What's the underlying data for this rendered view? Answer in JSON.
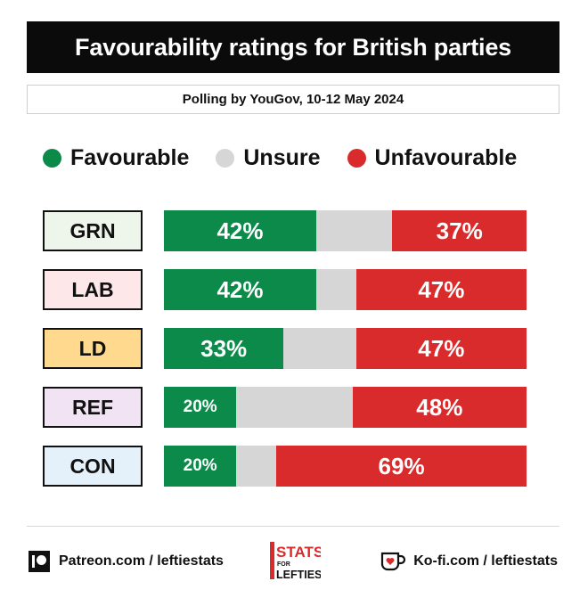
{
  "header": {
    "title": "Favourability ratings for British parties",
    "subtitle": "Polling by YouGov, 10-12 May 2024"
  },
  "legend": [
    {
      "label": "Favourable",
      "color": "#0b8a4a"
    },
    {
      "label": "Unsure",
      "color": "#d6d6d6"
    },
    {
      "label": "Unfavourable",
      "color": "#d92b2b"
    }
  ],
  "chart_data": {
    "type": "bar",
    "orientation": "horizontal-stacked",
    "title": "Favourability ratings for British parties",
    "subtitle": "Polling by YouGov, 10-12 May 2024",
    "categories": [
      "GRN",
      "LAB",
      "LD",
      "REF",
      "CON"
    ],
    "category_colors": [
      "#eef5ea",
      "#fde7e8",
      "#ffd98e",
      "#f1e3f3",
      "#e4f1fb"
    ],
    "series": [
      {
        "name": "Favourable",
        "color": "#0b8a4a",
        "values": [
          42,
          42,
          33,
          20,
          20
        ]
      },
      {
        "name": "Unsure",
        "color": "#d6d6d6",
        "values": [
          21,
          11,
          20,
          32,
          11
        ]
      },
      {
        "name": "Unfavourable",
        "color": "#d92b2b",
        "values": [
          37,
          47,
          47,
          48,
          69
        ]
      }
    ],
    "value_labels": {
      "Favourable": [
        "42%",
        "42%",
        "33%",
        "20%",
        "20%"
      ],
      "Unfavourable": [
        "37%",
        "47%",
        "47%",
        "48%",
        "69%"
      ]
    },
    "xlim": [
      0,
      100
    ],
    "legend_position": "top",
    "grid": false
  },
  "footer": {
    "patreon": "Patreon.com / leftiestats",
    "kofi": "Ko-fi.com / leftiestats",
    "logo_line1": "STATS",
    "logo_line2": "FOR",
    "logo_line3": "LEFTIES"
  }
}
